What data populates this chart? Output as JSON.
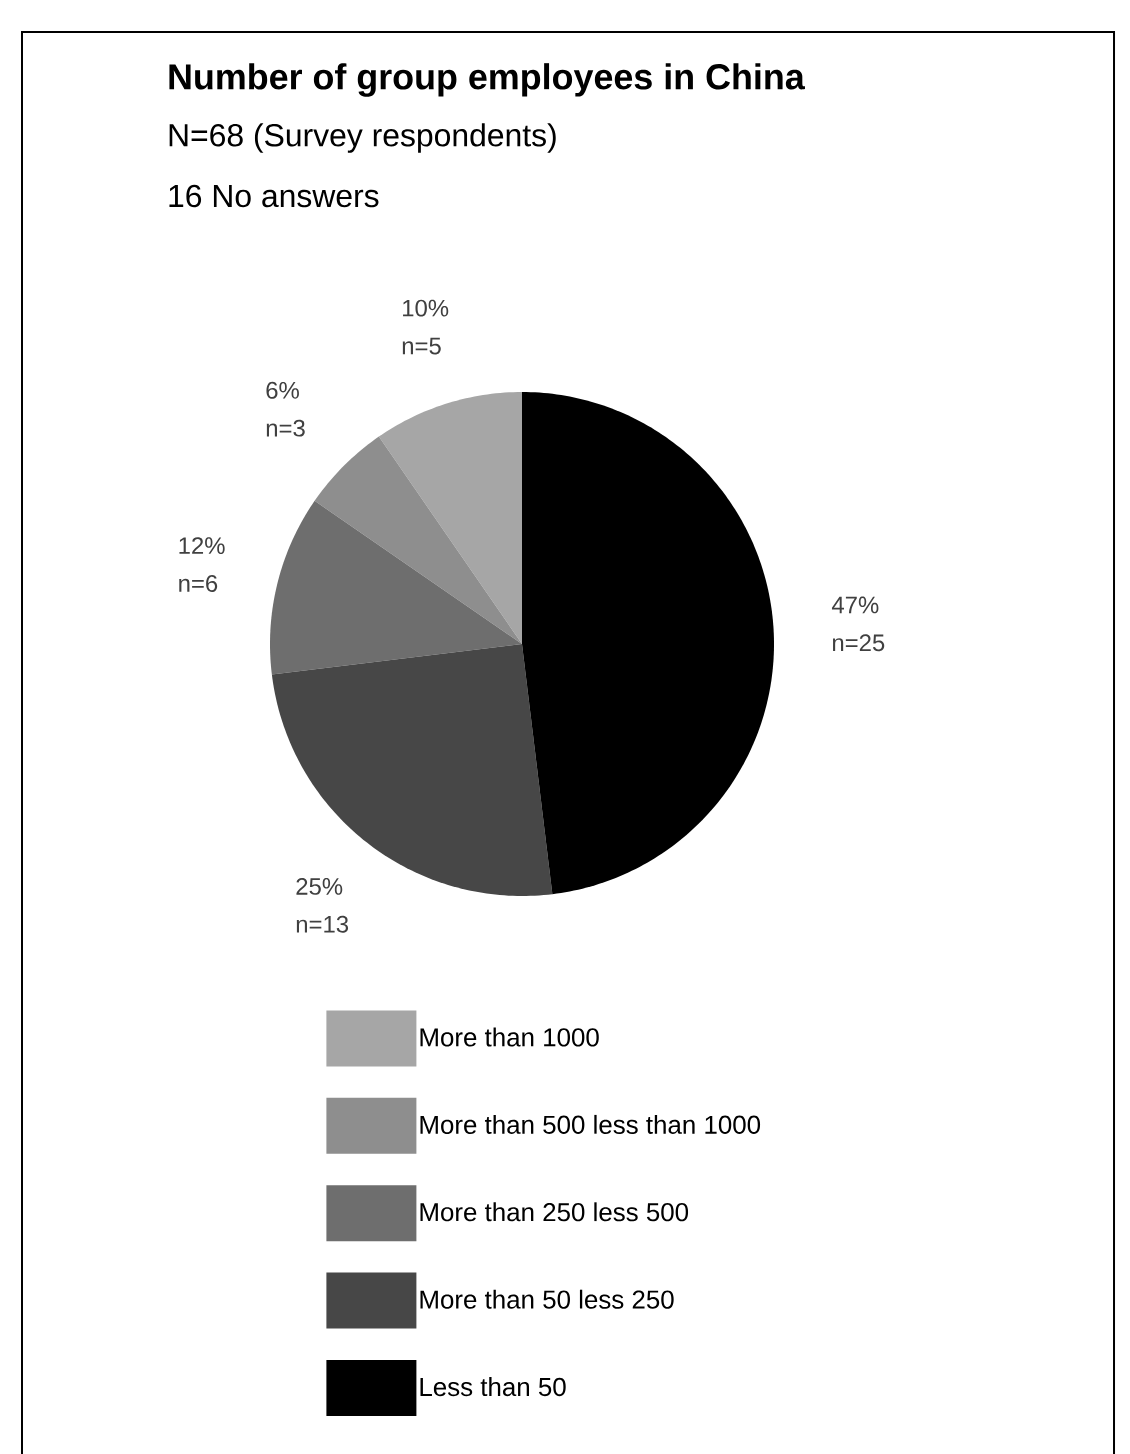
{
  "chart_data": {
    "type": "pie",
    "title": "Number of group employees in China",
    "subtitle": "N=68 (Survey respondents)",
    "annotations": [
      "16 No answers"
    ],
    "categories": [
      "More than 1000",
      "More than 500 less than 1000",
      "More than 250 less 500",
      "More than 50 less 250",
      "Less than 50"
    ],
    "values": [
      5,
      3,
      6,
      13,
      25
    ],
    "value_labels": [
      "10% n=5",
      "6% n=3",
      "12% n=6",
      "25% n=13",
      "47% n=25"
    ],
    "colors": [
      "#a6a6a6",
      "#8e8e8e",
      "#6e6e6e",
      "#474747",
      "#000000"
    ],
    "legend": "bottom"
  }
}
